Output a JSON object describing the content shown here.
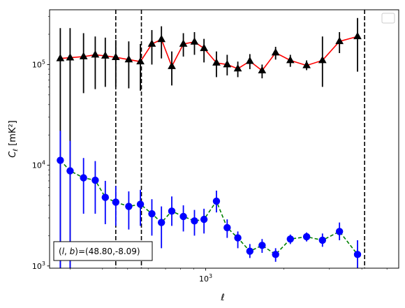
{
  "chart_data": {
    "type": "scatter",
    "xlabel": "ℓ",
    "ylabel_base": "C",
    "ylabel_sub": "ℓ",
    "ylabel_unit": "[mK²]",
    "xscale": "log",
    "yscale": "log",
    "xlim": [
      250,
      5550
    ],
    "ylim": [
      950,
      350000
    ],
    "xtick_label": {
      "value": 1000,
      "base": "10",
      "exponent": "3"
    },
    "ytick_labels": [
      {
        "value": 1000,
        "base": "10",
        "exponent": "3"
      },
      {
        "value": 10000,
        "base": "10",
        "exponent": "4"
      },
      {
        "value": 100000,
        "base": "10",
        "exponent": "5"
      }
    ],
    "legend": {
      "placement": "top-right",
      "entries": []
    },
    "annotation": {
      "parts": [
        "(",
        "l",
        ", ",
        "b",
        ")=(48.80,-8.09)"
      ],
      "placement": "bottom-left"
    },
    "vlines": [
      450,
      565,
      4100
    ],
    "series": [
      {
        "color": "#000000",
        "line_color": "#ff0000",
        "linestyle": "solid",
        "marker": "triangle",
        "points": [
          {
            "x": 275,
            "y": 115000,
            "lo": 0,
            "hi": 230000
          },
          {
            "x": 300,
            "y": 117000,
            "lo": 0,
            "hi": 230000
          },
          {
            "x": 338,
            "y": 120000,
            "lo": 52000,
            "hi": 205000
          },
          {
            "x": 375,
            "y": 125000,
            "lo": 57000,
            "hi": 190000
          },
          {
            "x": 410,
            "y": 122000,
            "lo": 60000,
            "hi": 185000
          },
          {
            "x": 450,
            "y": 118000,
            "lo": 60000,
            "hi": 175000
          },
          {
            "x": 505,
            "y": 112000,
            "lo": 58000,
            "hi": 170000
          },
          {
            "x": 560,
            "y": 107000,
            "lo": 55000,
            "hi": 160000
          },
          {
            "x": 620,
            "y": 160000,
            "lo": 100000,
            "hi": 220000
          },
          {
            "x": 675,
            "y": 178000,
            "lo": 115000,
            "hi": 240000
          },
          {
            "x": 740,
            "y": 96000,
            "lo": 62000,
            "hi": 135000
          },
          {
            "x": 820,
            "y": 160000,
            "lo": 120000,
            "hi": 205000
          },
          {
            "x": 905,
            "y": 168000,
            "lo": 125000,
            "hi": 210000
          },
          {
            "x": 985,
            "y": 145000,
            "lo": 105000,
            "hi": 180000
          },
          {
            "x": 1100,
            "y": 104000,
            "lo": 75000,
            "hi": 135000
          },
          {
            "x": 1210,
            "y": 100000,
            "lo": 78000,
            "hi": 125000
          },
          {
            "x": 1330,
            "y": 91000,
            "lo": 75000,
            "hi": 107000
          },
          {
            "x": 1480,
            "y": 108000,
            "lo": 90000,
            "hi": 127000
          },
          {
            "x": 1650,
            "y": 87000,
            "lo": 73000,
            "hi": 100000
          },
          {
            "x": 1860,
            "y": 131000,
            "lo": 112000,
            "hi": 150000
          },
          {
            "x": 2120,
            "y": 110000,
            "lo": 95000,
            "hi": 125000
          },
          {
            "x": 2450,
            "y": 98000,
            "lo": 88000,
            "hi": 110000
          },
          {
            "x": 2820,
            "y": 110000,
            "lo": 60000,
            "hi": 190000
          },
          {
            "x": 3280,
            "y": 170000,
            "lo": 130000,
            "hi": 210000
          },
          {
            "x": 3850,
            "y": 190000,
            "lo": 85000,
            "hi": 290000
          }
        ]
      },
      {
        "color": "#0000ff",
        "line_color": "#008000",
        "linestyle": "dashed",
        "marker": "circle",
        "points": [
          {
            "x": 275,
            "y": 11200,
            "lo": 950,
            "hi": 22000
          },
          {
            "x": 300,
            "y": 8800,
            "lo": 950,
            "hi": 17500
          },
          {
            "x": 338,
            "y": 7500,
            "lo": 3300,
            "hi": 11800
          },
          {
            "x": 375,
            "y": 7100,
            "lo": 3300,
            "hi": 11000
          },
          {
            "x": 410,
            "y": 4800,
            "lo": 2600,
            "hi": 7000
          },
          {
            "x": 450,
            "y": 4300,
            "lo": 2500,
            "hi": 6200
          },
          {
            "x": 505,
            "y": 3900,
            "lo": 2300,
            "hi": 5500
          },
          {
            "x": 560,
            "y": 4100,
            "lo": 2500,
            "hi": 5700
          },
          {
            "x": 620,
            "y": 3300,
            "lo": 2000,
            "hi": 4600
          },
          {
            "x": 675,
            "y": 2700,
            "lo": 1500,
            "hi": 3900
          },
          {
            "x": 740,
            "y": 3500,
            "lo": 2500,
            "hi": 4900
          },
          {
            "x": 820,
            "y": 3100,
            "lo": 2200,
            "hi": 4000
          },
          {
            "x": 905,
            "y": 2800,
            "lo": 2000,
            "hi": 3600
          },
          {
            "x": 985,
            "y": 2900,
            "lo": 2100,
            "hi": 3700
          },
          {
            "x": 1100,
            "y": 4400,
            "lo": 3400,
            "hi": 5600
          },
          {
            "x": 1210,
            "y": 2400,
            "lo": 1900,
            "hi": 2900
          },
          {
            "x": 1330,
            "y": 1900,
            "lo": 1500,
            "hi": 2200
          },
          {
            "x": 1480,
            "y": 1400,
            "lo": 1200,
            "hi": 1650
          },
          {
            "x": 1650,
            "y": 1600,
            "lo": 1350,
            "hi": 1850
          },
          {
            "x": 1860,
            "y": 1300,
            "lo": 1100,
            "hi": 1500
          },
          {
            "x": 2120,
            "y": 1850,
            "lo": 1650,
            "hi": 2050
          },
          {
            "x": 2450,
            "y": 1950,
            "lo": 1750,
            "hi": 2150
          },
          {
            "x": 2820,
            "y": 1800,
            "lo": 1550,
            "hi": 2100
          },
          {
            "x": 3280,
            "y": 2200,
            "lo": 1800,
            "hi": 2700
          },
          {
            "x": 3850,
            "y": 1300,
            "lo": 950,
            "hi": 1800
          }
        ]
      }
    ]
  }
}
